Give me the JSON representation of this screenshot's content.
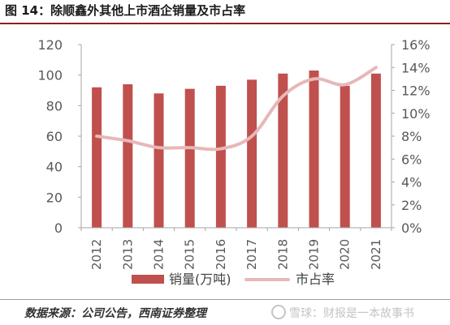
{
  "header": {
    "title": "图 14：除顺鑫外其他上市酒企销量及市占率"
  },
  "footer": {
    "source": "数据来源：公司公告，西南证券整理",
    "watermark": "雪球：财报是一本故事书"
  },
  "colors": {
    "bar": "#c0504d",
    "line": "#e6b8b7",
    "title_rule": "#8c1f1f"
  },
  "chart_data": {
    "type": "bar",
    "categories": [
      "2012",
      "2013",
      "2014",
      "2015",
      "2016",
      "2017",
      "2018",
      "2019",
      "2020",
      "2021"
    ],
    "series": [
      {
        "name": "销量(万吨)",
        "type": "bar",
        "axis": "left",
        "values": [
          92,
          94,
          88,
          91,
          93,
          97,
          101,
          103,
          93,
          101
        ]
      },
      {
        "name": "市占率",
        "type": "line",
        "axis": "right",
        "values": [
          0.08,
          0.076,
          0.07,
          0.07,
          0.069,
          0.08,
          0.115,
          0.13,
          0.125,
          0.14
        ]
      }
    ],
    "y_left": {
      "ylim": [
        0,
        120
      ],
      "ticks": [
        "0",
        "20",
        "40",
        "60",
        "80",
        "100",
        "120"
      ]
    },
    "y_right": {
      "ylim": [
        0,
        0.16
      ],
      "ticks": [
        "0%",
        "2%",
        "4%",
        "6%",
        "8%",
        "10%",
        "12%",
        "14%",
        "16%"
      ]
    },
    "grid": false,
    "legend_position": "bottom"
  }
}
